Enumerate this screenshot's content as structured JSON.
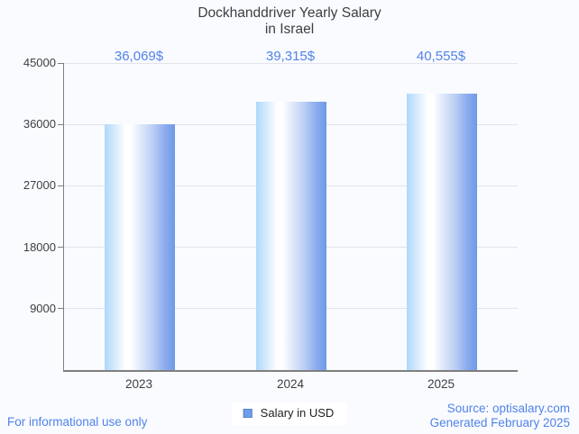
{
  "title": {
    "line1": "Dockhanddriver Yearly Salary",
    "line2": "in Israel"
  },
  "chart_data": {
    "type": "bar",
    "title": "Dockhanddriver Yearly Salary in Israel",
    "categories": [
      "2023",
      "2024",
      "2025"
    ],
    "values": [
      36069,
      39315,
      40555
    ],
    "value_labels": [
      "36,069$",
      "39,315$",
      "40,555$"
    ],
    "series_name": "Salary in USD",
    "ylim": [
      0,
      45000
    ],
    "yticks": [
      9000,
      18000,
      27000,
      36000,
      45000
    ],
    "grid": true,
    "legend_position": "bottom"
  },
  "legend": {
    "label": "Salary in USD"
  },
  "footer": {
    "left": "For informational use only",
    "source": "Source: optisalary.com",
    "generated": "Generated February 2025"
  },
  "colors": {
    "accent_blue": "#5083e8",
    "bar_gradient_left": "#aed8fb",
    "bar_gradient_right": "#6d9ae8",
    "legend_swatch": "#6d9eeb",
    "grid": "#e2e4e9",
    "axis": "#7f7f7f",
    "background": "#fafbff",
    "title_text": "#3c4043"
  }
}
